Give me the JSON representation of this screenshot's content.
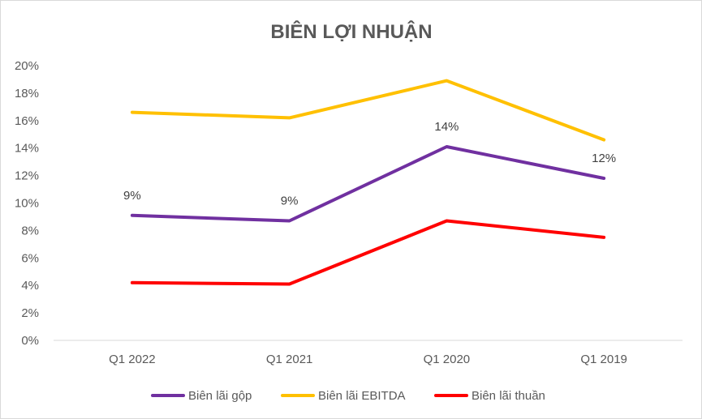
{
  "chart_data": {
    "type": "line",
    "title": "BIÊN LỢI NHUẬN",
    "categories": [
      "Q1 2022",
      "Q1 2021",
      "Q1 2020",
      "Q1 2019"
    ],
    "ylim": [
      0,
      20
    ],
    "yticks": [
      "0%",
      "2%",
      "4%",
      "6%",
      "8%",
      "10%",
      "12%",
      "14%",
      "16%",
      "18%",
      "20%"
    ],
    "ytick_values": [
      0,
      2,
      4,
      6,
      8,
      10,
      12,
      14,
      16,
      18,
      20
    ],
    "grid": false,
    "legend_position": "bottom",
    "series": [
      {
        "name": "Biên lãi gộp",
        "color": "#7030A0",
        "values": [
          9.1,
          8.7,
          14.1,
          11.8
        ],
        "data_labels": [
          "9%",
          "9%",
          "14%",
          "12%"
        ]
      },
      {
        "name": "Biên lãi EBITDA",
        "color": "#FFC000",
        "values": [
          16.6,
          16.2,
          18.9,
          14.6
        ]
      },
      {
        "name": "Biên lãi thuần",
        "color": "#FF0000",
        "values": [
          4.2,
          4.1,
          8.7,
          7.5
        ]
      }
    ]
  }
}
